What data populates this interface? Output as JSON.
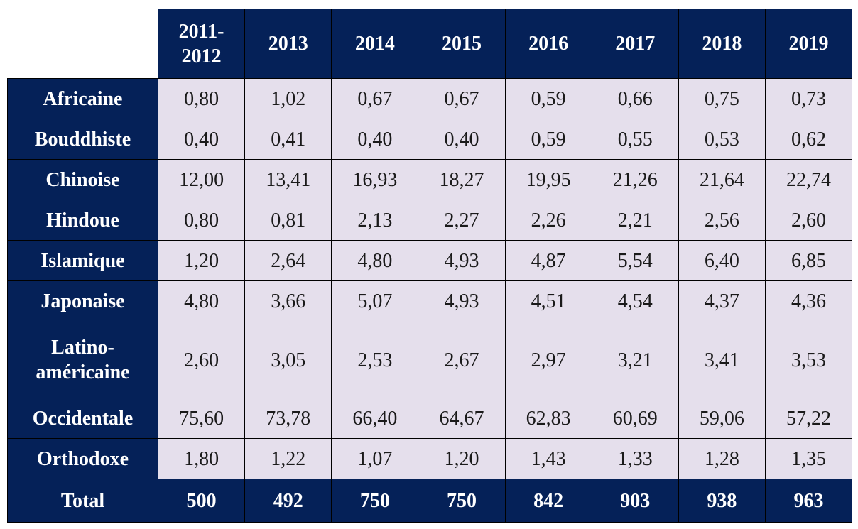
{
  "colors": {
    "header_bg": "#052158",
    "cell_bg": "#e5dfec",
    "header_text": "#ffffff"
  },
  "table": {
    "columns": [
      "2011-\n2012",
      "2013",
      "2014",
      "2015",
      "2016",
      "2017",
      "2018",
      "2019"
    ],
    "rows": [
      {
        "label": "Africaine",
        "values": [
          "0,80",
          "1,02",
          "0,67",
          "0,67",
          "0,59",
          "0,66",
          "0,75",
          "0,73"
        ]
      },
      {
        "label": "Bouddhiste",
        "values": [
          "0,40",
          "0,41",
          "0,40",
          "0,40",
          "0,59",
          "0,55",
          "0,53",
          "0,62"
        ]
      },
      {
        "label": "Chinoise",
        "values": [
          "12,00",
          "13,41",
          "16,93",
          "18,27",
          "19,95",
          "21,26",
          "21,64",
          "22,74"
        ]
      },
      {
        "label": "Hindoue",
        "values": [
          "0,80",
          "0,81",
          "2,13",
          "2,27",
          "2,26",
          "2,21",
          "2,56",
          "2,60"
        ]
      },
      {
        "label": "Islamique",
        "values": [
          "1,20",
          "2,64",
          "4,80",
          "4,93",
          "4,87",
          "5,54",
          "6,40",
          "6,85"
        ]
      },
      {
        "label": "Japonaise",
        "values": [
          "4,80",
          "3,66",
          "5,07",
          "4,93",
          "4,51",
          "4,54",
          "4,37",
          "4,36"
        ]
      },
      {
        "label": "Latino-\naméricaine",
        "values": [
          "2,60",
          "3,05",
          "2,53",
          "2,67",
          "2,97",
          "3,21",
          "3,41",
          "3,53"
        ]
      },
      {
        "label": "Occidentale",
        "values": [
          "75,60",
          "73,78",
          "66,40",
          "64,67",
          "62,83",
          "60,69",
          "59,06",
          "57,22"
        ]
      },
      {
        "label": "Orthodoxe",
        "values": [
          "1,80",
          "1,22",
          "1,07",
          "1,20",
          "1,43",
          "1,33",
          "1,28",
          "1,35"
        ]
      }
    ],
    "total": {
      "label": "Total",
      "values": [
        "500",
        "492",
        "750",
        "750",
        "842",
        "903",
        "938",
        "963"
      ]
    }
  }
}
